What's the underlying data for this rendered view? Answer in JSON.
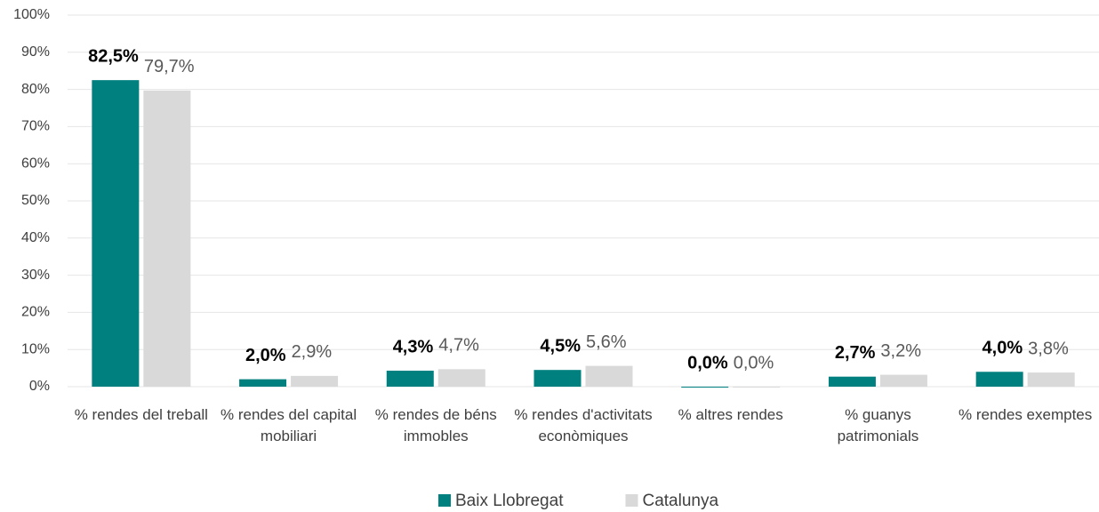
{
  "chart_data": {
    "type": "bar",
    "categories": [
      "% rendes del treball",
      "% rendes del capital mobiliari",
      "% rendes de béns immobles",
      "% rendes d'activitats econòmiques",
      "% altres rendes",
      "% guanys patrimonials",
      "% rendes exemptes"
    ],
    "series": [
      {
        "name": "Baix Llobregat",
        "color": "#00807f",
        "values": [
          82.5,
          2.0,
          4.3,
          4.5,
          0.0,
          2.7,
          4.0
        ],
        "value_labels": [
          "82,5%",
          "2,0%",
          "4,3%",
          "4,5%",
          "0,0%",
          "2,7%",
          "4,0%"
        ]
      },
      {
        "name": "Catalunya",
        "color": "#d9d9d9",
        "values": [
          79.7,
          2.9,
          4.7,
          5.6,
          0.0,
          3.2,
          3.8
        ],
        "value_labels": [
          "79,7%",
          "2,9%",
          "4,7%",
          "5,6%",
          "0,0%",
          "3,2%",
          "3,8%"
        ]
      }
    ],
    "ylim": [
      0,
      100
    ],
    "yticks": [
      {
        "value": 0,
        "label": "0%"
      },
      {
        "value": 10,
        "label": "10%"
      },
      {
        "value": 20,
        "label": "20%"
      },
      {
        "value": 30,
        "label": "30%"
      },
      {
        "value": 40,
        "label": "40%"
      },
      {
        "value": 50,
        "label": "50%"
      },
      {
        "value": 60,
        "label": "60%"
      },
      {
        "value": 70,
        "label": "70%"
      },
      {
        "value": 80,
        "label": "80%"
      },
      {
        "value": 90,
        "label": "90%"
      },
      {
        "value": 100,
        "label": "100%"
      }
    ],
    "grid": true,
    "legend": "bottom"
  }
}
